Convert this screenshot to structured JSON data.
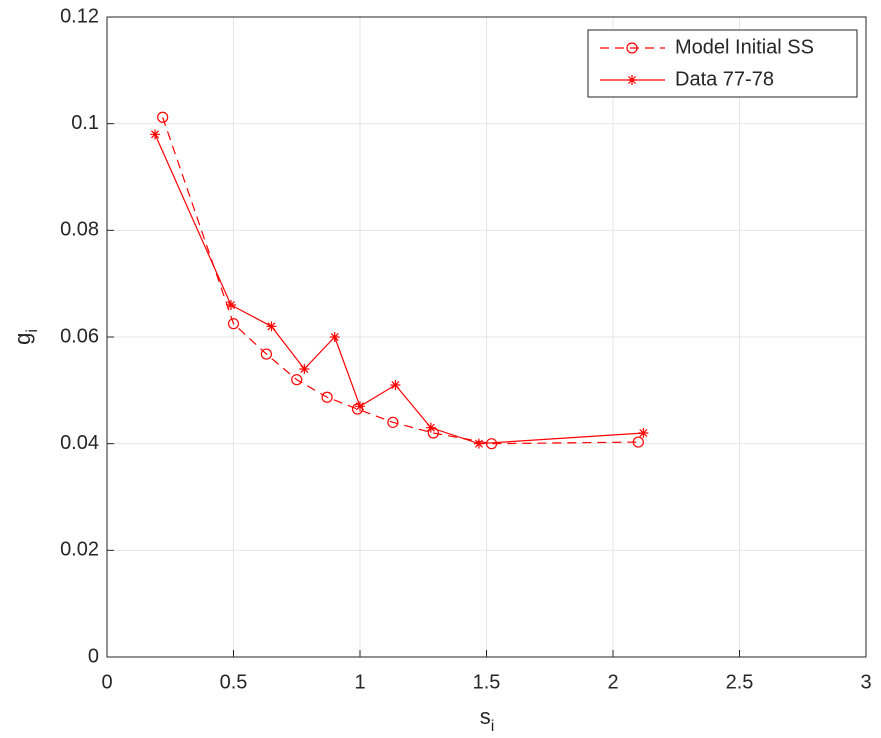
{
  "chart_data": {
    "type": "line",
    "xlabel": {
      "text": "s",
      "subscript": "i"
    },
    "ylabel": {
      "text": "g",
      "subscript": "i"
    },
    "xlim": [
      0,
      3
    ],
    "xticks": [
      0,
      0.5,
      1,
      1.5,
      2,
      2.5,
      3
    ],
    "ylim": [
      0,
      0.12
    ],
    "yticks": [
      0,
      0.02,
      0.04,
      0.06,
      0.08,
      0.1,
      0.12
    ],
    "grid": true,
    "legend": "northeast",
    "series": [
      {
        "name": "Model Initial SS",
        "color": "#ff0000",
        "line_style": "dashed",
        "marker": "circle",
        "x": [
          0.22,
          0.5,
          0.63,
          0.75,
          0.87,
          0.99,
          1.13,
          1.29,
          1.52,
          2.1
        ],
        "values": [
          0.1012,
          0.0625,
          0.0568,
          0.052,
          0.0487,
          0.0465,
          0.044,
          0.042,
          0.04,
          0.0403
        ]
      },
      {
        "name": "Data 77-78",
        "color": "#ff0000",
        "line_style": "solid",
        "marker": "asterisk",
        "x": [
          0.19,
          0.49,
          0.65,
          0.78,
          0.9,
          1,
          1.14,
          1.28,
          1.47,
          2.12
        ],
        "values": [
          0.098,
          0.066,
          0.062,
          0.054,
          0.06,
          0.047,
          0.051,
          0.043,
          0.04,
          0.042
        ]
      }
    ]
  }
}
